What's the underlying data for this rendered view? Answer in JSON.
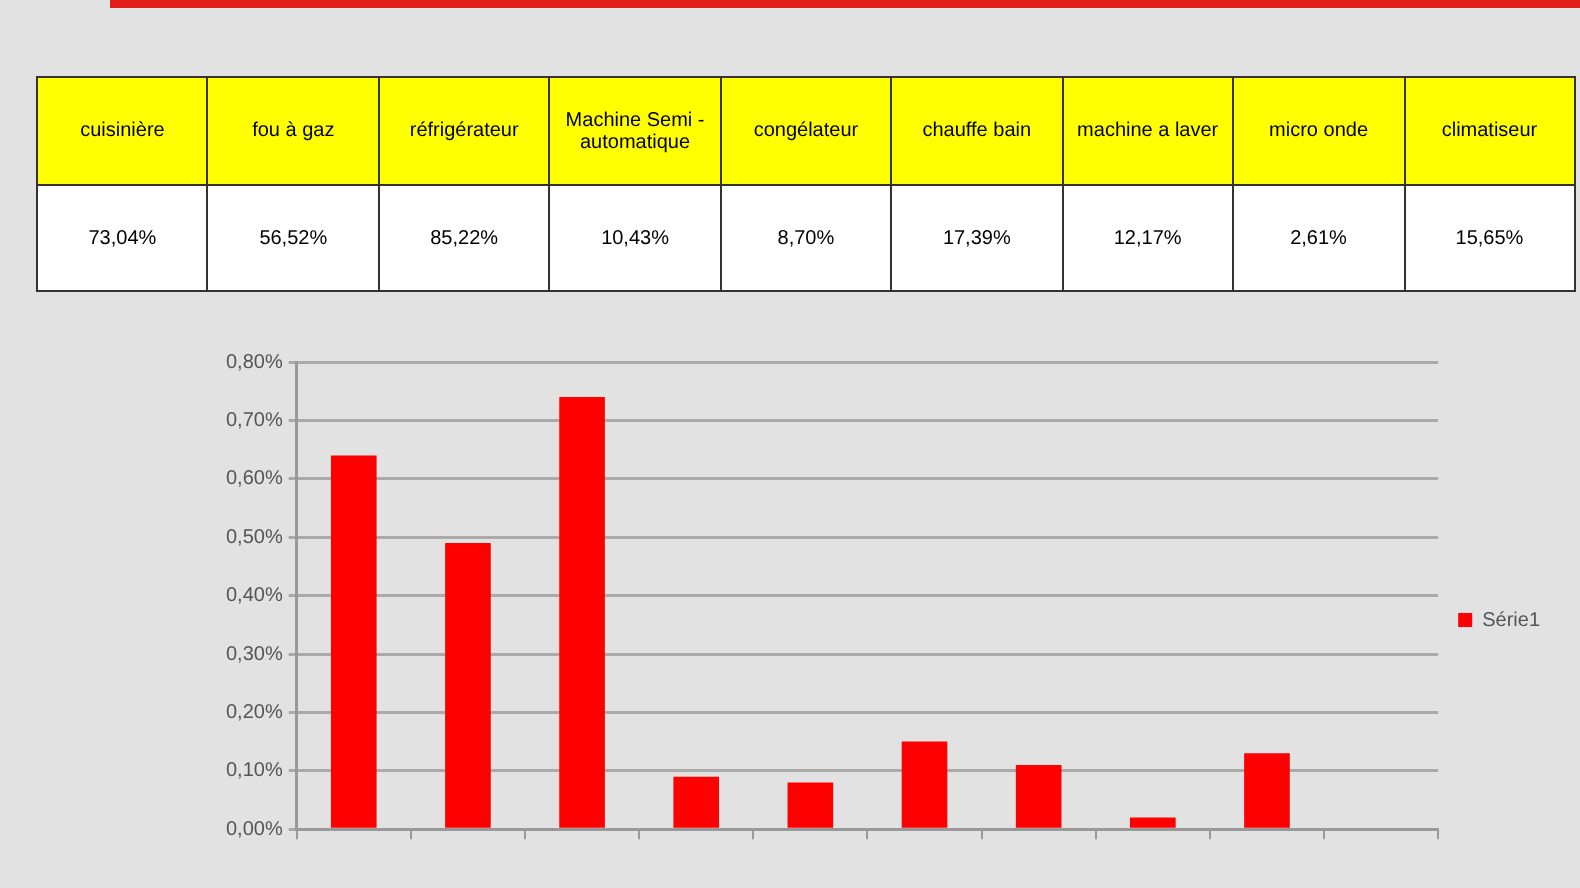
{
  "chart_data": [
    {
      "type": "other",
      "categories": [
        "cuisinière",
        "fou à gaz",
        "réfrigérateur",
        "Machine Semi - automatique",
        "congélateur",
        "chauffe bain",
        "machine a laver",
        "micro onde",
        "climatiseur"
      ],
      "value_labels": [
        "73,04%",
        "56,52%",
        "85,22%",
        "10,43%",
        "8,70%",
        "17,39%",
        "12,17%",
        "2,61%",
        "15,65%"
      ]
    },
    {
      "type": "bar",
      "categories": [
        null,
        null,
        null,
        null,
        null,
        null,
        null,
        null,
        null,
        null
      ],
      "series": [
        {
          "name": "Série1",
          "color": "#ff0000",
          "values": [
            0.64,
            0.49,
            0.74,
            0.09,
            0.08,
            0.15,
            0.11,
            0.02,
            0.13,
            null
          ]
        }
      ],
      "ylim": [
        0,
        0.8
      ],
      "yticks": [
        {
          "value": 0,
          "label": "0,00%"
        },
        {
          "value": 0.1,
          "label": "0,10%"
        },
        {
          "value": 0.2,
          "label": "0,20%"
        },
        {
          "value": 0.3,
          "label": "0,30%"
        },
        {
          "value": 0.4,
          "label": "0,40%"
        },
        {
          "value": 0.5,
          "label": "0,50%"
        },
        {
          "value": 0.6,
          "label": "0,60%"
        },
        {
          "value": 0.7,
          "label": "0,70%"
        },
        {
          "value": 0.8,
          "label": "0,80%"
        }
      ],
      "grid": "y",
      "legend": "right"
    }
  ]
}
